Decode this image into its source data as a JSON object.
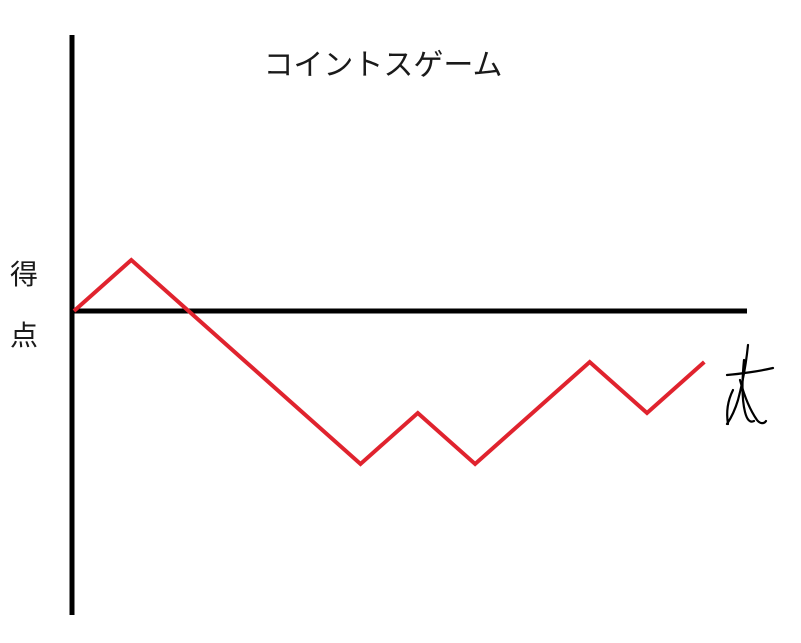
{
  "chart_data": {
    "type": "line",
    "title": "コイントスゲーム",
    "ylabel": [
      "得",
      "点"
    ],
    "xlabel": "",
    "x": [
      0,
      1,
      2,
      3,
      4,
      5,
      6,
      7,
      8,
      9,
      10,
      11
    ],
    "series": [
      {
        "values": [
          0,
          1,
          0,
          -1,
          -2,
          -3,
          -2,
          -3,
          -2,
          -1,
          -2,
          -1
        ],
        "color": "#e0232e"
      }
    ],
    "grid": false,
    "legend": "none",
    "x_axis_symbol": "t-handwritten",
    "axis_color": "#000000"
  }
}
